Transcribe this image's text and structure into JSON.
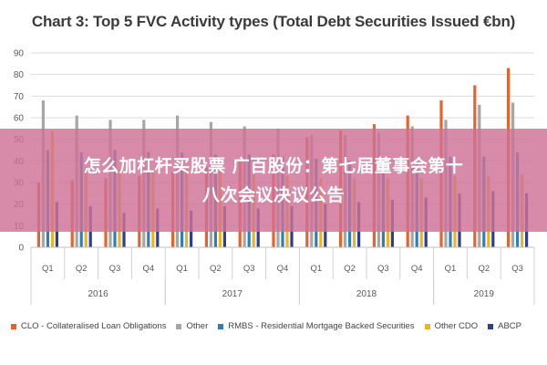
{
  "colors": {
    "grid": "#dcdcdc",
    "axis_text": "#595959",
    "overlay": "#ce7296"
  },
  "chart_data": {
    "type": "bar",
    "title": "Chart 3: Top 5 FVC Activity types (Total Debt Securities Issued €bn)",
    "xlabel": "",
    "ylabel": "",
    "ylim": [
      0,
      90
    ],
    "yticks": [
      0,
      10,
      20,
      30,
      40,
      50,
      60,
      70,
      80,
      90
    ],
    "grid": true,
    "legend_position": "bottom",
    "categories": [
      "Q1",
      "Q2",
      "Q3",
      "Q4",
      "Q1",
      "Q2",
      "Q3",
      "Q4",
      "Q1",
      "Q2",
      "Q3",
      "Q4",
      "Q1",
      "Q2",
      "Q3"
    ],
    "groups": [
      {
        "label": "2016",
        "start": 0,
        "count": 4
      },
      {
        "label": "2017",
        "start": 4,
        "count": 4
      },
      {
        "label": "2018",
        "start": 8,
        "count": 4
      },
      {
        "label": "2019",
        "start": 12,
        "count": 3
      }
    ],
    "series": [
      {
        "name": "CLO - Collateralised Loan Obligations",
        "color": "#e8632b",
        "values": [
          30,
          31,
          32,
          33,
          35,
          37,
          40,
          43,
          51,
          54,
          57,
          61,
          68,
          75,
          83
        ]
      },
      {
        "name": "Other",
        "color": "#a6a6a6",
        "values": [
          68,
          61,
          59,
          59,
          61,
          58,
          56,
          55,
          52,
          52,
          53,
          56,
          59,
          66,
          67
        ]
      },
      {
        "name": "RMBS - Residential Mortgage Backed Securities",
        "color": "#2c7fb8",
        "values": [
          45,
          44,
          45,
          44,
          44,
          43,
          43,
          42,
          41,
          40,
          40,
          40,
          42,
          42,
          44
        ]
      },
      {
        "name": "Other CDO",
        "color": "#f0b323",
        "values": [
          54,
          37,
          36,
          35,
          37,
          36,
          35,
          33,
          32,
          32,
          32,
          32,
          33,
          33,
          34
        ]
      },
      {
        "name": "ABCP",
        "color": "#2e3f8f",
        "values": [
          21,
          19,
          16,
          18,
          17,
          19,
          18,
          19,
          20,
          21,
          22,
          23,
          25,
          26,
          25
        ]
      }
    ]
  },
  "overlay": {
    "line1": "怎么加杠杆买股票 广百股份：第七届董事会第十",
    "line2": "八次会议决议公告"
  }
}
